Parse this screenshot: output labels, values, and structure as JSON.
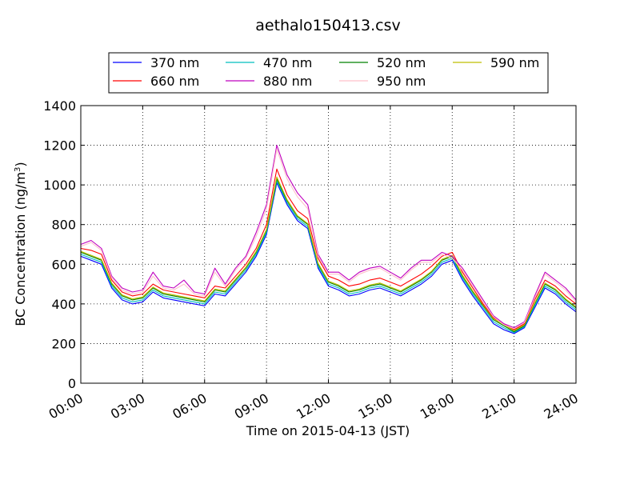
{
  "chart_data": {
    "type": "line",
    "title": "aethalo150413.csv",
    "xlabel": "Time on 2015-04-13 (JST)",
    "ylabel": "BC Concentration (ng/m",
    "ylabel_sup": "3",
    "ylabel_end": ")",
    "xlim": [
      0,
      24
    ],
    "ylim": [
      0,
      1400
    ],
    "x_ticks": [
      0,
      3,
      6,
      9,
      12,
      15,
      18,
      21,
      24
    ],
    "x_tick_labels": [
      "00:00",
      "03:00",
      "06:00",
      "09:00",
      "12:00",
      "15:00",
      "18:00",
      "21:00",
      "24:00"
    ],
    "y_ticks": [
      0,
      200,
      400,
      600,
      800,
      1000,
      1200,
      1400
    ],
    "y_tick_labels": [
      "0",
      "200",
      "400",
      "600",
      "800",
      "1000",
      "1200",
      "1400"
    ],
    "grid": true,
    "legend_position": "top-center",
    "legend_columns": 4,
    "x": [
      0,
      0.5,
      1,
      1.5,
      2,
      2.5,
      3,
      3.5,
      4,
      4.5,
      5,
      5.5,
      6,
      6.5,
      7,
      7.5,
      8,
      8.5,
      9,
      9.5,
      10,
      10.5,
      11,
      11.5,
      12,
      12.5,
      13,
      13.5,
      14,
      14.5,
      15,
      15.5,
      16,
      16.5,
      17,
      17.5,
      18,
      18.5,
      19,
      19.5,
      20,
      20.5,
      21,
      21.5,
      22,
      22.5,
      23,
      23.5,
      24
    ],
    "series": [
      {
        "name": "370 nm",
        "color": "#0000ff",
        "values": [
          640,
          620,
          600,
          480,
          420,
          400,
          410,
          460,
          430,
          420,
          410,
          400,
          390,
          450,
          440,
          500,
          560,
          640,
          750,
          1010,
          900,
          820,
          780,
          580,
          490,
          470,
          440,
          450,
          470,
          480,
          460,
          440,
          470,
          500,
          540,
          600,
          620,
          520,
          440,
          370,
          300,
          270,
          250,
          280,
          380,
          480,
          450,
          400,
          360
        ]
      },
      {
        "name": "470 nm",
        "color": "#00bfbf",
        "values": [
          650,
          630,
          610,
          490,
          430,
          410,
          420,
          470,
          440,
          430,
          420,
          410,
          400,
          460,
          450,
          510,
          570,
          650,
          760,
          1020,
          910,
          830,
          790,
          590,
          500,
          480,
          450,
          460,
          480,
          490,
          470,
          450,
          480,
          510,
          550,
          610,
          630,
          530,
          450,
          380,
          310,
          280,
          255,
          285,
          390,
          490,
          460,
          410,
          370
        ]
      },
      {
        "name": "520 nm",
        "color": "#008000",
        "values": [
          660,
          640,
          620,
          500,
          440,
          420,
          430,
          480,
          450,
          440,
          430,
          420,
          410,
          470,
          460,
          520,
          580,
          660,
          770,
          1030,
          920,
          840,
          800,
          600,
          510,
          490,
          460,
          470,
          490,
          500,
          480,
          460,
          490,
          520,
          560,
          620,
          640,
          540,
          460,
          390,
          320,
          290,
          260,
          290,
          400,
          500,
          470,
          420,
          380
        ]
      },
      {
        "name": "590 nm",
        "color": "#bfbf00",
        "values": [
          665,
          645,
          625,
          505,
          445,
          425,
          435,
          485,
          455,
          445,
          435,
          425,
          415,
          475,
          465,
          525,
          585,
          665,
          775,
          1040,
          925,
          845,
          805,
          605,
          515,
          495,
          465,
          475,
          495,
          505,
          485,
          465,
          495,
          525,
          565,
          625,
          645,
          545,
          465,
          395,
          325,
          295,
          265,
          295,
          405,
          505,
          475,
          425,
          385
        ]
      },
      {
        "name": "660 nm",
        "color": "#ff0000",
        "values": [
          680,
          670,
          650,
          520,
          460,
          440,
          450,
          500,
          470,
          460,
          450,
          440,
          430,
          490,
          480,
          540,
          600,
          680,
          800,
          1080,
          950,
          870,
          830,
          630,
          540,
          520,
          490,
          500,
          520,
          530,
          510,
          490,
          520,
          550,
          590,
          640,
          660,
          560,
          480,
          400,
          330,
          300,
          270,
          300,
          420,
          520,
          490,
          440,
          400
        ]
      },
      {
        "name": "880 nm",
        "color": "#bf00bf",
        "values": [
          700,
          720,
          680,
          540,
          480,
          460,
          470,
          560,
          490,
          480,
          520,
          460,
          450,
          580,
          500,
          580,
          640,
          760,
          900,
          1200,
          1050,
          960,
          900,
          650,
          560,
          560,
          520,
          560,
          580,
          590,
          560,
          530,
          580,
          620,
          620,
          660,
          640,
          580,
          500,
          420,
          340,
          300,
          280,
          310,
          440,
          560,
          520,
          480,
          420
        ]
      },
      {
        "name": "950 nm",
        "color": "#ffc0cb",
        "values": [
          690,
          710,
          670,
          530,
          470,
          450,
          460,
          540,
          480,
          470,
          500,
          450,
          440,
          560,
          490,
          570,
          630,
          740,
          880,
          1180,
          1030,
          940,
          880,
          640,
          550,
          550,
          510,
          550,
          570,
          580,
          550,
          520,
          570,
          610,
          610,
          650,
          630,
          570,
          490,
          410,
          335,
          295,
          275,
          305,
          430,
          550,
          510,
          470,
          410
        ]
      }
    ]
  }
}
